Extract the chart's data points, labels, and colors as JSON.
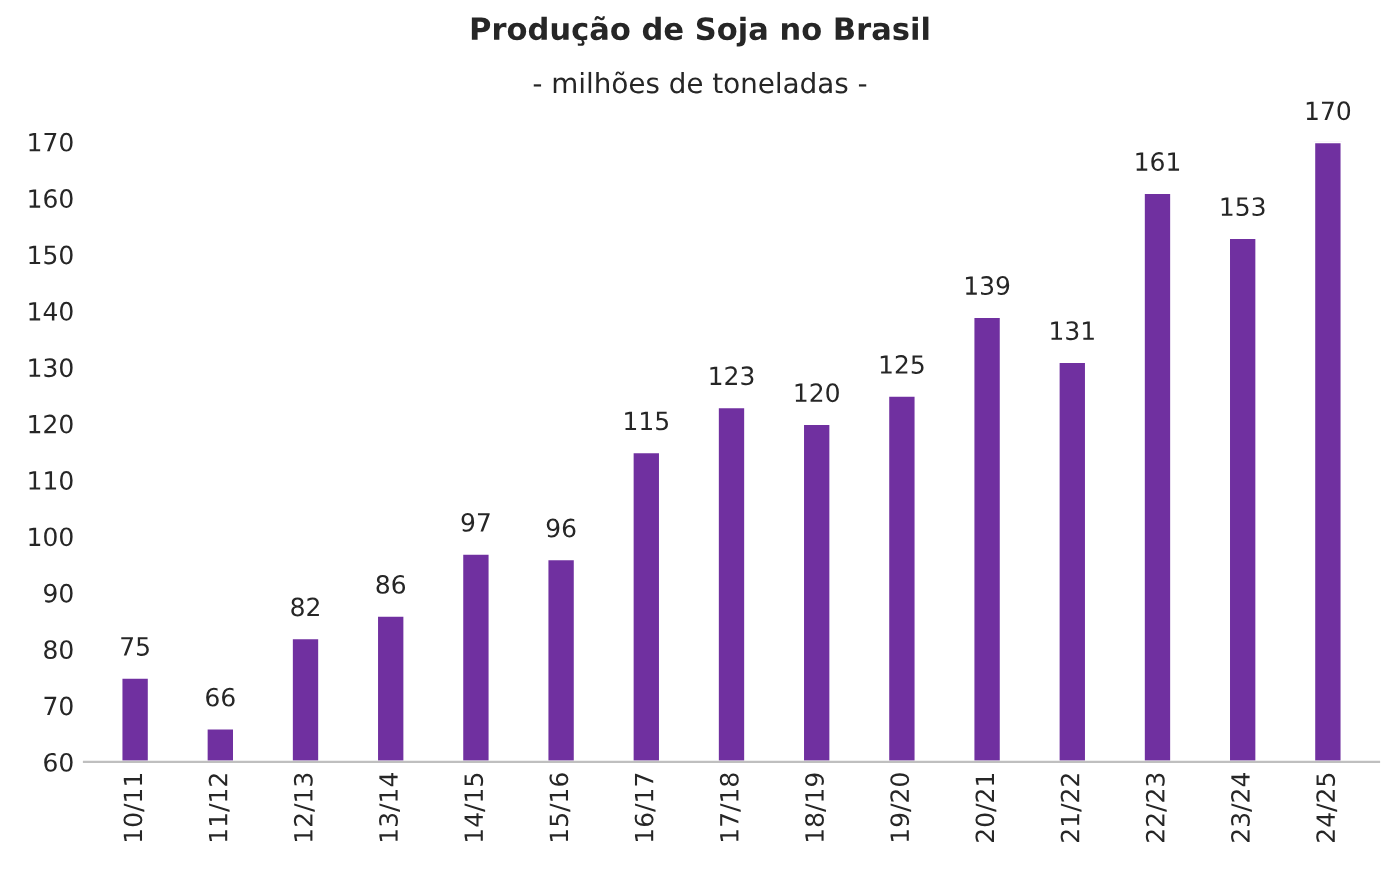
{
  "chart_data": {
    "type": "bar",
    "title": "Produção de Soja no Brasil",
    "subtitle": "- milhões de toneladas -",
    "categories": [
      "10/11",
      "11/12",
      "12/13",
      "13/14",
      "14/15",
      "15/16",
      "16/17",
      "17/18",
      "18/19",
      "19/20",
      "20/21",
      "21/22",
      "22/23",
      "23/24",
      "24/25"
    ],
    "values": [
      75,
      66,
      82,
      86,
      97,
      96,
      115,
      123,
      120,
      125,
      139,
      131,
      161,
      153,
      170
    ],
    "color": "#7030a0",
    "ylim": [
      60,
      170
    ],
    "yticks": [
      60,
      70,
      80,
      90,
      100,
      110,
      120,
      130,
      140,
      150,
      160,
      170
    ],
    "grid": false,
    "data_labels": true
  }
}
